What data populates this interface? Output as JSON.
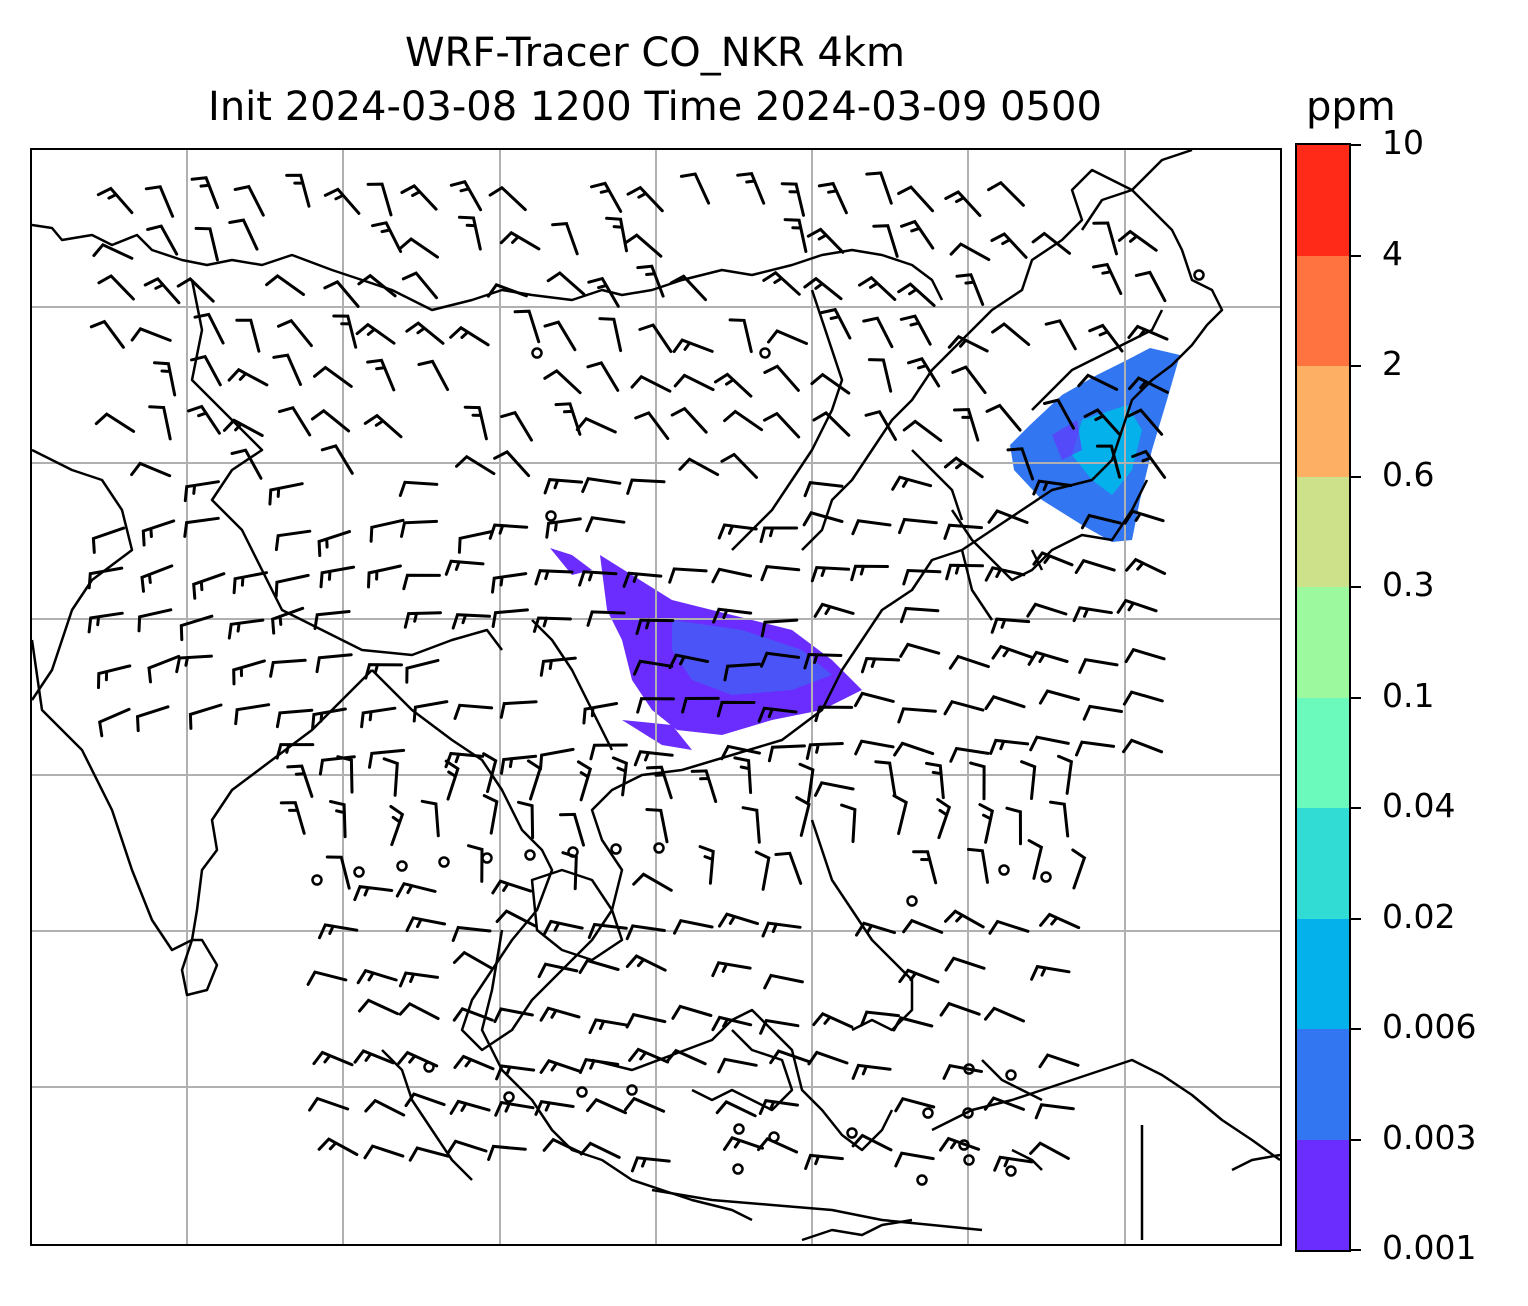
{
  "title": {
    "line1": "WRF-Tracer CO_NKR 4km",
    "line2": "Init 2024-03-08 1200 Time 2024-03-09 0500"
  },
  "colorbar": {
    "unit": "ppm",
    "levels": [
      "0.001",
      "0.003",
      "0.006",
      "0.02",
      "0.04",
      "0.1",
      "0.3",
      "0.6",
      "2",
      "4",
      "10"
    ],
    "colors": [
      "#6a2dfd",
      "#3276f2",
      "#04b1ea",
      "#30dcd4",
      "#6cf9bc",
      "#9cf99e",
      "#cde08a",
      "#fdb063",
      "#ff7340",
      "#ff2a18"
    ]
  },
  "map": {
    "gridlines": true,
    "plume_colors": {
      "low": "#6a2dfd",
      "mid": "#3276f2",
      "high": "#04b1ea"
    },
    "calm_marker": "circle",
    "barbs": "wind-barbs"
  }
}
